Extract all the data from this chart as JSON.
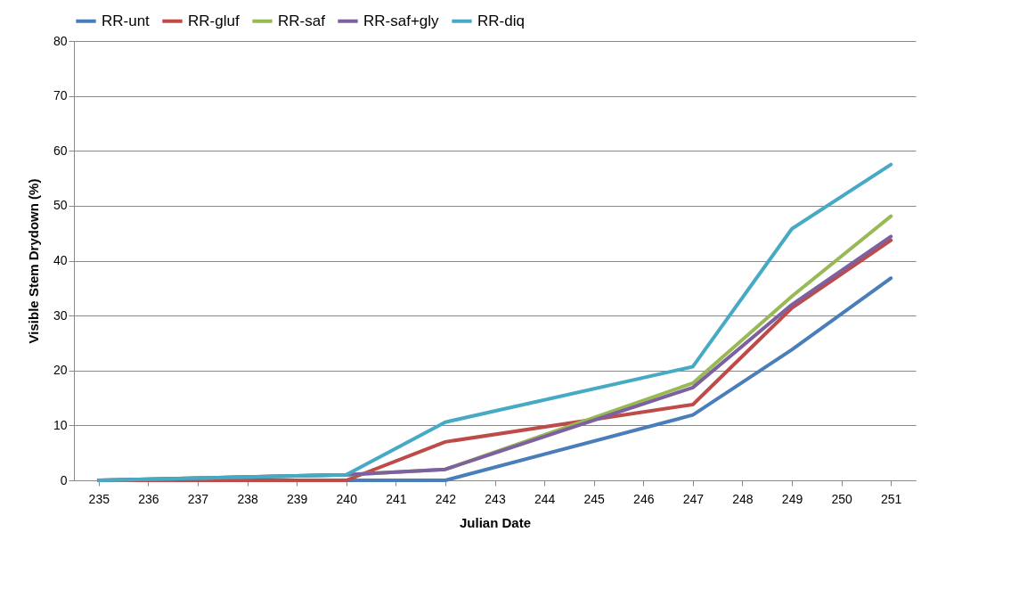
{
  "chart_data": {
    "type": "line",
    "xlabel": "Julian Date",
    "ylabel": "Visible  Stem Drydown (%)",
    "x": [
      235,
      240,
      242,
      247,
      249,
      251
    ],
    "xlim": [
      234.5,
      251.5
    ],
    "xticks": [
      235,
      236,
      237,
      238,
      239,
      240,
      241,
      242,
      243,
      244,
      245,
      246,
      247,
      248,
      249,
      250,
      251
    ],
    "ylim": [
      0,
      80
    ],
    "yticks": [
      0,
      10,
      20,
      30,
      40,
      50,
      60,
      70,
      80
    ],
    "grid": "y",
    "legend": "top",
    "marker": "none",
    "line_style": "solid",
    "series": [
      {
        "name": "RR-unt",
        "color": "#4a7ebb",
        "values": [
          0,
          0,
          0,
          11.9,
          23.8,
          36.8
        ]
      },
      {
        "name": "RR-gluf",
        "color": "#be4b48",
        "values": [
          0,
          0,
          7,
          13.8,
          31.4,
          43.7
        ]
      },
      {
        "name": "RR-saf",
        "color": "#98b954",
        "values": [
          0,
          1,
          2,
          17.7,
          33.5,
          48.1
        ]
      },
      {
        "name": "RR-saf+gly",
        "color": "#7d60a0",
        "values": [
          0,
          1,
          2,
          16.9,
          32,
          44.4
        ]
      },
      {
        "name": "RR-diq",
        "color": "#46aac5",
        "values": [
          0,
          1,
          10.6,
          20.7,
          45.8,
          57.5
        ]
      }
    ]
  }
}
